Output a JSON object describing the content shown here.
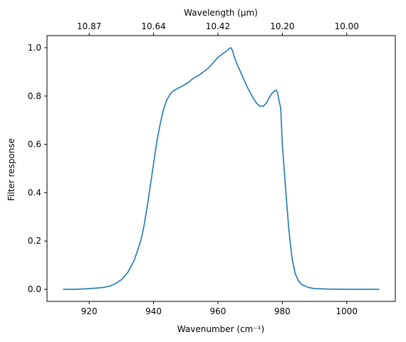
{
  "chart_data": {
    "type": "line",
    "xlabel": "Wavenumber (cm⁻¹)",
    "ylabel": "Filter response",
    "top_xlabel": "Wavelength (μm)",
    "xlim": [
      906.9,
      1015.1
    ],
    "ylim": [
      -0.05,
      1.05
    ],
    "x_ticks": [
      920,
      940,
      960,
      980,
      1000
    ],
    "x_tick_labels": [
      "920",
      "940",
      "960",
      "980",
      "1000"
    ],
    "y_ticks": [
      0.0,
      0.2,
      0.4,
      0.6,
      0.8,
      1.0
    ],
    "y_tick_labels": [
      "0.0",
      "0.2",
      "0.4",
      "0.6",
      "0.8",
      "1.0"
    ],
    "top_ticks": [
      {
        "label": "10.87",
        "wavenumber": 920
      },
      {
        "label": "10.64",
        "wavenumber": 940
      },
      {
        "label": "10.42",
        "wavenumber": 960
      },
      {
        "label": "10.20",
        "wavenumber": 980
      },
      {
        "label": "10.00",
        "wavenumber": 1000
      }
    ],
    "grid": false,
    "series_color": "#1f77b4",
    "series": [
      {
        "name": "",
        "x": [
          912,
          916,
          920,
          924,
          926,
          928,
          930,
          932,
          934,
          936,
          937,
          938,
          939,
          940,
          941,
          942,
          943,
          944,
          945,
          946,
          947,
          948,
          949,
          950,
          951,
          952,
          953,
          954,
          955,
          956,
          957,
          958,
          959,
          960,
          961,
          962,
          963,
          963.5,
          964,
          964.5,
          965,
          966,
          967,
          968,
          969,
          970,
          971,
          972,
          973,
          974,
          975,
          976,
          977,
          978,
          978.5,
          979,
          979.5,
          980,
          981,
          982,
          983,
          984,
          985,
          986,
          988,
          990,
          994,
          1000,
          1010
        ],
        "y": [
          0.0,
          0.0,
          0.003,
          0.007,
          0.012,
          0.022,
          0.04,
          0.07,
          0.12,
          0.2,
          0.26,
          0.34,
          0.43,
          0.52,
          0.61,
          0.68,
          0.74,
          0.78,
          0.805,
          0.82,
          0.828,
          0.835,
          0.842,
          0.85,
          0.858,
          0.87,
          0.878,
          0.885,
          0.895,
          0.905,
          0.915,
          0.93,
          0.945,
          0.96,
          0.97,
          0.98,
          0.99,
          0.997,
          1.0,
          0.99,
          0.965,
          0.93,
          0.9,
          0.87,
          0.84,
          0.815,
          0.79,
          0.77,
          0.758,
          0.757,
          0.77,
          0.795,
          0.815,
          0.825,
          0.815,
          0.78,
          0.75,
          0.6,
          0.42,
          0.25,
          0.13,
          0.065,
          0.035,
          0.02,
          0.008,
          0.003,
          0.001,
          0.0,
          0.0
        ]
      }
    ]
  }
}
